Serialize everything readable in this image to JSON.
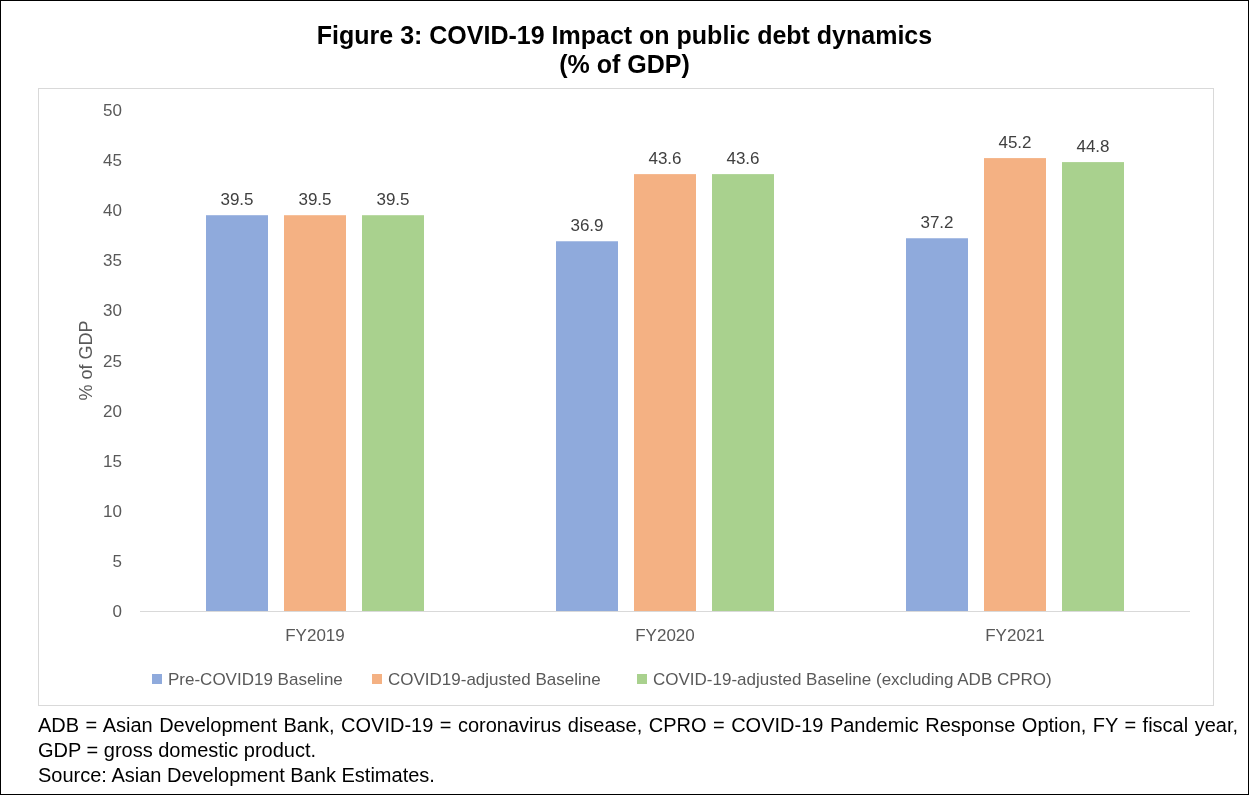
{
  "chart_data": {
    "type": "bar",
    "title": "Figure 3: COVID-19 Impact on public debt dynamics\n(% of GDP)",
    "ylabel": "% of GDP",
    "categories": [
      "FY2019",
      "FY2020",
      "FY2021"
    ],
    "series": [
      {
        "name": "Pre-COVID19 Baseline",
        "color": "#8faadc",
        "values": [
          39.5,
          36.9,
          37.2
        ]
      },
      {
        "name": "COVID19-adjusted Baseline",
        "color": "#f4b183",
        "values": [
          39.5,
          43.6,
          45.2
        ]
      },
      {
        "name": "COVID-19-adjusted Baseline (excluding ADB CPRO)",
        "color": "#a9d18e",
        "values": [
          39.5,
          43.6,
          44.8
        ]
      }
    ],
    "ylim": [
      0,
      50
    ],
    "yticks": [
      0,
      5,
      10,
      15,
      20,
      25,
      30,
      35,
      40,
      45,
      50
    ],
    "grid": false,
    "data_labels": true,
    "legend": "bottom",
    "annotations": [
      "ADB = Asian Development Bank, COVID-19 = coronavirus disease, CPRO = COVID-19 Pandemic Response Option, FY = fiscal year, GDP = gross domestic product.",
      "Source: Asian Development Bank Estimates."
    ]
  }
}
